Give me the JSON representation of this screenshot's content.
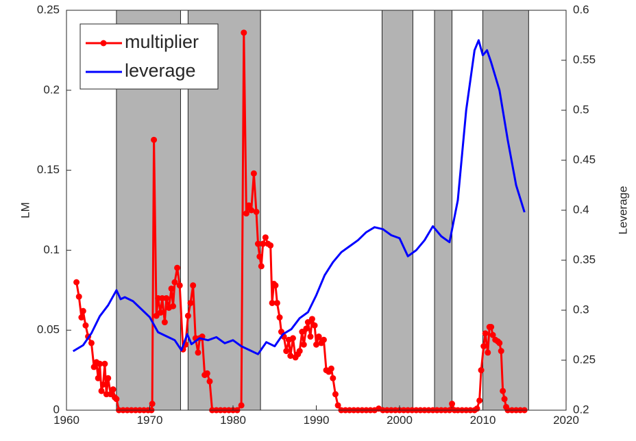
{
  "chart_data": {
    "type": "line",
    "ylabel": "LM",
    "y2label": "Leverage",
    "xlim": [
      1960,
      2020
    ],
    "xticks": [
      1960,
      1970,
      1980,
      1990,
      2000,
      2010,
      2020
    ],
    "ylim": [
      0,
      0.25
    ],
    "yticks": [
      0,
      0.05,
      0.1,
      0.15,
      0.2,
      0.25
    ],
    "y2lim": [
      0.2,
      0.6
    ],
    "y2ticks": [
      0.2,
      0.25,
      0.3,
      0.35,
      0.4,
      0.45,
      0.5,
      0.55,
      0.6
    ],
    "legend": "upper left",
    "shaded_color": "#b3b3b3",
    "shaded_regions": [
      [
        1966.0,
        1973.7
      ],
      [
        1974.6,
        1983.3
      ],
      [
        1997.9,
        2001.6
      ],
      [
        2004.2,
        2006.3
      ],
      [
        2010.0,
        2015.5
      ]
    ],
    "series": [
      {
        "name": "multiplier",
        "color": "#ff0000",
        "markers": true,
        "x": [
          1961.2,
          1961.5,
          1961.8,
          1962.0,
          1962.3,
          1962.6,
          1963.0,
          1963.3,
          1963.6,
          1963.8,
          1964.0,
          1964.2,
          1964.4,
          1964.6,
          1964.8,
          1965.0,
          1965.3,
          1965.6,
          1965.8,
          1966.0,
          1966.3,
          1966.8,
          1967.3,
          1967.8,
          1968.3,
          1968.8,
          1969.3,
          1969.8,
          1970.2,
          1970.3,
          1970.5,
          1970.8,
          1971.0,
          1971.3,
          1971.5,
          1971.8,
          1972.0,
          1972.3,
          1972.6,
          1972.8,
          1973.0,
          1973.3,
          1973.6,
          1974.0,
          1974.3,
          1974.6,
          1974.9,
          1975.2,
          1975.5,
          1975.8,
          1976.0,
          1976.3,
          1976.6,
          1976.9,
          1977.2,
          1977.5,
          1978.0,
          1978.5,
          1979.0,
          1979.5,
          1980.0,
          1980.5,
          1981.0,
          1981.3,
          1981.6,
          1981.9,
          1982.2,
          1982.5,
          1982.8,
          1983.0,
          1983.2,
          1983.4,
          1983.6,
          1983.9,
          1984.2,
          1984.5,
          1984.7,
          1984.9,
          1985.1,
          1985.3,
          1985.6,
          1985.8,
          1986.1,
          1986.4,
          1986.7,
          1986.9,
          1987.2,
          1987.5,
          1987.8,
          1988.0,
          1988.3,
          1988.5,
          1988.8,
          1989.0,
          1989.3,
          1989.5,
          1989.8,
          1990.0,
          1990.3,
          1990.6,
          1990.9,
          1991.2,
          1991.5,
          1991.8,
          1992.0,
          1992.3,
          1992.6,
          1993.0,
          1993.5,
          1994.0,
          1994.5,
          1995.0,
          1995.5,
          1996.0,
          1996.5,
          1997.0,
          1997.5,
          1998.0,
          1998.5,
          1999.0,
          1999.5,
          2000.0,
          2000.5,
          2001.0,
          2001.5,
          2002.0,
          2002.5,
          2003.0,
          2003.5,
          2004.0,
          2004.5,
          2005.0,
          2005.5,
          2006.0,
          2006.3,
          2006.6,
          2007.0,
          2007.5,
          2008.0,
          2008.5,
          2009.0,
          2009.3,
          2009.6,
          2009.8,
          2010.1,
          2010.3,
          2010.6,
          2010.8,
          2011.0,
          2011.2,
          2011.5,
          2011.8,
          2012.0,
          2012.2,
          2012.4,
          2012.6,
          2012.8,
          2013.0,
          2013.5,
          2014.0,
          2014.5,
          2015.0
        ],
        "values": [
          0.08,
          0.071,
          0.058,
          0.062,
          0.053,
          0.046,
          0.042,
          0.027,
          0.03,
          0.02,
          0.029,
          0.012,
          0.016,
          0.029,
          0.01,
          0.02,
          0.01,
          0.013,
          0.008,
          0.007,
          0,
          0,
          0,
          0,
          0,
          0,
          0,
          0,
          0,
          0.004,
          0.169,
          0.059,
          0.07,
          0.061,
          0.07,
          0.055,
          0.07,
          0.064,
          0.076,
          0.065,
          0.08,
          0.089,
          0.078,
          0.038,
          0.041,
          0.059,
          0.067,
          0.078,
          0.045,
          0.036,
          0.045,
          0.046,
          0.022,
          0.023,
          0.018,
          0,
          0,
          0,
          0,
          0,
          0,
          0,
          0.003,
          0.236,
          0.123,
          0.128,
          0.125,
          0.148,
          0.124,
          0.104,
          0.096,
          0.09,
          0.104,
          0.108,
          0.104,
          0.103,
          0.067,
          0.079,
          0.078,
          0.067,
          0.058,
          0.049,
          0.046,
          0.037,
          0.044,
          0.034,
          0.045,
          0.033,
          0.035,
          0.037,
          0.049,
          0.041,
          0.051,
          0.055,
          0.046,
          0.057,
          0.053,
          0.041,
          0.046,
          0.042,
          0.044,
          0.025,
          0.024,
          0.026,
          0.02,
          0.01,
          0.003,
          0,
          0,
          0,
          0,
          0,
          0,
          0,
          0,
          0,
          0.001,
          0,
          0,
          0,
          0,
          0,
          0,
          0,
          0,
          0,
          0,
          0,
          0,
          0,
          0,
          0,
          0,
          0,
          0.004,
          0,
          0,
          0,
          0,
          0,
          0,
          0.001,
          0.006,
          0.025,
          0.04,
          0.048,
          0.036,
          0.052,
          0.052,
          0.047,
          0.044,
          0.043,
          0.042,
          0.037,
          0.012,
          0.007,
          0.002,
          0,
          0,
          0,
          0,
          0
        ]
      },
      {
        "name": "leverage",
        "color": "#0000ff",
        "axis": "y2",
        "x": [
          1960.8,
          1962,
          1963,
          1964,
          1965,
          1966,
          1966.5,
          1967,
          1968,
          1969,
          1970,
          1971,
          1972,
          1973,
          1973.8,
          1974.5,
          1975,
          1976,
          1977,
          1978,
          1979,
          1980,
          1981,
          1982,
          1983,
          1984,
          1985,
          1986,
          1987,
          1988,
          1989,
          1990,
          1991,
          1992,
          1993,
          1994,
          1995,
          1996,
          1997,
          1998,
          1999,
          2000,
          2001,
          2002,
          2003,
          2004,
          2005,
          2006,
          2007,
          2008,
          2009,
          2009.5,
          2010,
          2010.5,
          2011,
          2012,
          2013,
          2014,
          2015
        ],
        "values": [
          0.259,
          0.265,
          0.277,
          0.294,
          0.305,
          0.32,
          0.311,
          0.313,
          0.309,
          0.301,
          0.293,
          0.278,
          0.274,
          0.27,
          0.26,
          0.276,
          0.266,
          0.272,
          0.27,
          0.273,
          0.267,
          0.27,
          0.264,
          0.26,
          0.256,
          0.268,
          0.264,
          0.276,
          0.281,
          0.292,
          0.298,
          0.315,
          0.335,
          0.348,
          0.358,
          0.364,
          0.37,
          0.378,
          0.383,
          0.381,
          0.375,
          0.372,
          0.354,
          0.36,
          0.37,
          0.384,
          0.374,
          0.368,
          0.41,
          0.5,
          0.56,
          0.57,
          0.555,
          0.56,
          0.548,
          0.52,
          0.47,
          0.425,
          0.398
        ]
      }
    ]
  }
}
